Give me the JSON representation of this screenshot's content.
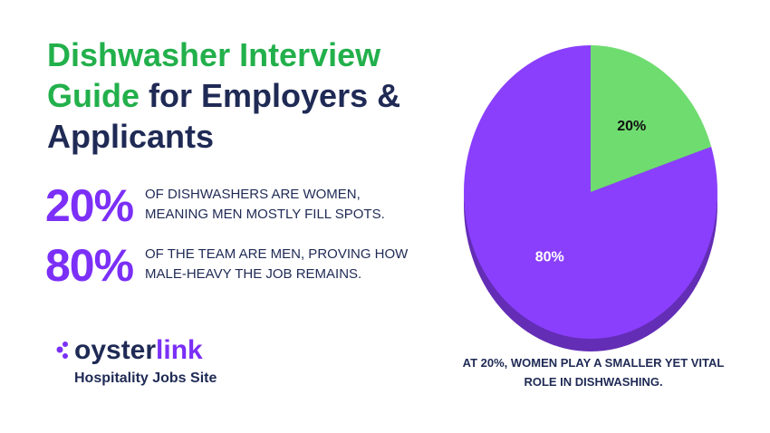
{
  "header": {
    "title_highlight": "Dishwasher Interview Guide",
    "title_rest": "for Employers & Applicants"
  },
  "stats": [
    {
      "figure": "20%",
      "text": "OF DISHWASHERS ARE WOMEN, MEANING MEN MOSTLY FILL SPOTS."
    },
    {
      "figure": "80%",
      "text": "OF THE TEAM ARE MEN, PROVING HOW MALE-HEAVY THE JOB REMAINS."
    }
  ],
  "brand": {
    "name_a": "oyster",
    "name_b": "link",
    "tagline": "Hospitality Jobs Site"
  },
  "chart_data": {
    "type": "pie",
    "values": [
      20,
      80
    ],
    "value_labels": [
      "20%",
      "80%"
    ],
    "colors": [
      "#6fdc6f",
      "#8a3ffc"
    ],
    "caption": "AT 20%, WOMEN PLAY A SMALLER YET VITAL ROLE IN DISHWASHING."
  }
}
